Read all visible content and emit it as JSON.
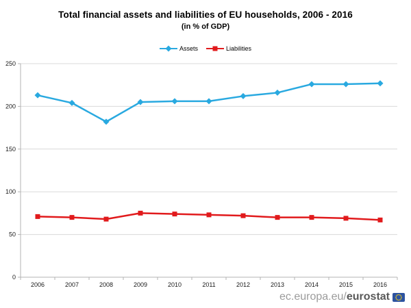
{
  "title": "Total financial assets and liabilities of EU households, 2006 - 2016",
  "subtitle": "(in % of GDP)",
  "chart_data": {
    "type": "line",
    "categories": [
      "2006",
      "2007",
      "2008",
      "2009",
      "2010",
      "2011",
      "2012",
      "2013",
      "2014",
      "2015",
      "2016"
    ],
    "series": [
      {
        "name": "Assets",
        "color": "#29a9e0",
        "marker": "diamond",
        "values": [
          213,
          204,
          182,
          205,
          206,
          206,
          212,
          216,
          226,
          226,
          227
        ]
      },
      {
        "name": "Liabilities",
        "color": "#e11a1c",
        "marker": "square",
        "values": [
          71,
          70,
          68,
          75,
          74,
          73,
          72,
          70,
          70,
          69,
          67
        ]
      }
    ],
    "title": "Total financial assets and liabilities of EU households, 2006 - 2016",
    "subtitle": "(in % of GDP)",
    "xlabel": "",
    "ylabel": "",
    "ylim": [
      0,
      250
    ],
    "yticks": [
      0,
      50,
      100,
      150,
      200,
      250
    ],
    "grid": "horizontal",
    "legend_position": "top-center"
  },
  "footer": {
    "url_prefix": "ec.europa.eu/",
    "url_brand": "eurostat"
  },
  "colors": {
    "assets_line": "#29a9e0",
    "liabilities_line": "#e11a1c",
    "gridline": "#d9d9d9",
    "axis": "#b3b3b3",
    "tick_text": "#1a1a1a",
    "footer_gray": "#9b9b9b",
    "footer_dark": "#595959",
    "eu_flag_blue": "#2d53a0",
    "eu_flag_yellow": "#ffd617"
  }
}
